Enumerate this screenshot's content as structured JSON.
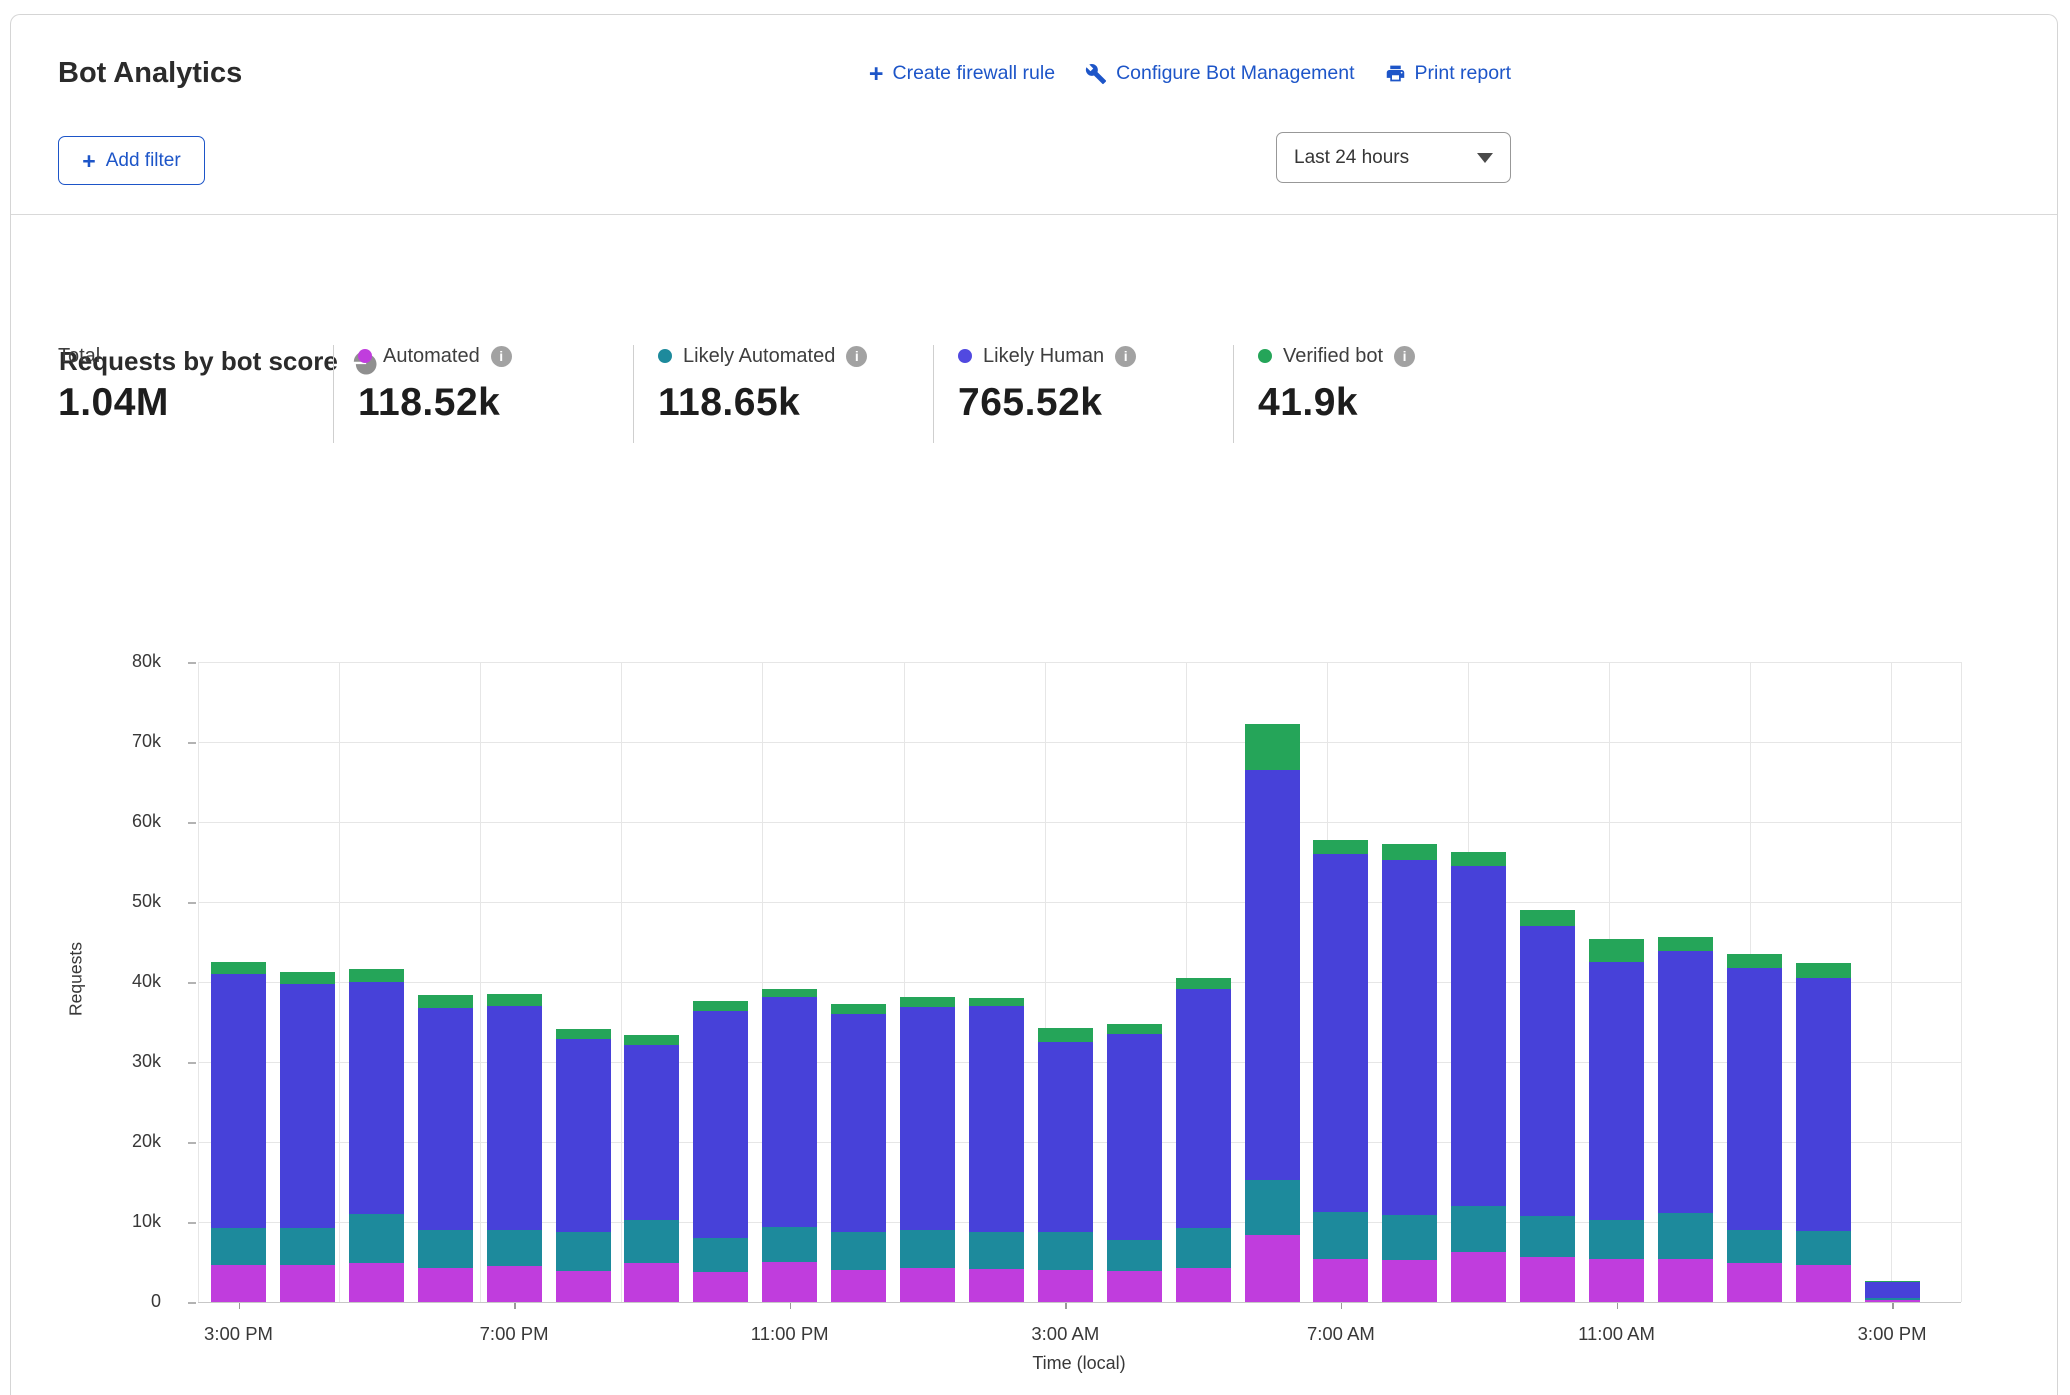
{
  "header": {
    "title": "Bot Analytics",
    "actions": [
      {
        "icon": "plus-icon",
        "label": "Create firewall rule"
      },
      {
        "icon": "wrench-icon",
        "label": "Configure Bot Management"
      },
      {
        "icon": "printer-icon",
        "label": "Print report"
      }
    ]
  },
  "filter": {
    "add_label": "Add filter"
  },
  "time_range": {
    "value": "Last 24 hours"
  },
  "section": {
    "title": "Requests by bot score",
    "icon": "pie-chart-icon"
  },
  "stats": {
    "total": {
      "label": "Total",
      "value": "1.04M"
    },
    "series": [
      {
        "label": "Automated",
        "value": "118.52k",
        "color": "#c03ddd"
      },
      {
        "label": "Likely Automated",
        "value": "118.65k",
        "color": "#1d8a9c"
      },
      {
        "label": "Likely Human",
        "value": "765.52k",
        "color": "#5149e0"
      },
      {
        "label": "Verified bot",
        "value": "41.9k",
        "color": "#25a559"
      }
    ]
  },
  "chart_data": {
    "type": "bar",
    "subtype": "stacked",
    "title": "Requests by bot score",
    "ylabel": "Requests",
    "xlabel": "Time (local)",
    "ylim": [
      0,
      80000
    ],
    "values_unit": "thousands of requests per hour",
    "grid": true,
    "y_tick_labels": [
      "0",
      "10k",
      "20k",
      "30k",
      "40k",
      "50k",
      "60k",
      "70k",
      "80k"
    ],
    "x_tick_labels": [
      "3:00 PM",
      "7:00 PM",
      "11:00 PM",
      "3:00 AM",
      "7:00 AM",
      "11:00 AM",
      "3:00 PM"
    ],
    "x_tick_bar_indices": [
      0,
      4,
      8,
      12,
      16,
      20,
      24
    ],
    "categories": [
      "3:00 PM",
      "4:00 PM",
      "5:00 PM",
      "6:00 PM",
      "7:00 PM",
      "8:00 PM",
      "9:00 PM",
      "10:00 PM",
      "11:00 PM",
      "12:00 AM",
      "1:00 AM",
      "2:00 AM",
      "3:00 AM",
      "4:00 AM",
      "5:00 AM",
      "6:00 AM",
      "7:00 AM",
      "8:00 AM",
      "9:00 AM",
      "10:00 AM",
      "11:00 AM",
      "12:00 PM",
      "1:00 PM",
      "2:00 PM",
      "3:00 PM"
    ],
    "series": [
      {
        "name": "Automated",
        "color": "#c03ddd",
        "values": [
          4.6,
          4.6,
          4.9,
          4.2,
          4.5,
          3.9,
          4.9,
          3.8,
          5.0,
          4.0,
          4.2,
          4.1,
          4.0,
          3.9,
          4.3,
          8.4,
          5.4,
          5.3,
          6.3,
          5.6,
          5.4,
          5.4,
          4.9,
          4.6,
          0.2
        ]
      },
      {
        "name": "Likely Automated",
        "color": "#1d8a9c",
        "values": [
          4.6,
          4.6,
          6.1,
          4.7,
          4.5,
          4.9,
          5.4,
          4.3,
          4.4,
          4.8,
          4.8,
          4.6,
          4.7,
          3.9,
          5.0,
          6.9,
          5.9,
          5.6,
          5.8,
          5.1,
          4.9,
          5.8,
          4.1,
          4.3,
          0.2
        ]
      },
      {
        "name": "Likely Human",
        "color": "#4741d9",
        "values": [
          31.8,
          30.5,
          29.0,
          27.7,
          28.0,
          24.1,
          21.9,
          28.4,
          28.7,
          27.2,
          27.9,
          28.3,
          23.7,
          25.7,
          29.9,
          51.3,
          44.7,
          44.4,
          42.5,
          36.2,
          32.3,
          32.8,
          32.8,
          31.6,
          2.0
        ]
      },
      {
        "name": "Verified bot",
        "color": "#25a559",
        "values": [
          1.5,
          1.5,
          1.6,
          1.6,
          1.5,
          1.3,
          1.3,
          1.2,
          1.0,
          1.3,
          1.3,
          1.0,
          1.7,
          1.3,
          1.4,
          5.7,
          1.8,
          2.0,
          1.8,
          2.0,
          2.9,
          1.7,
          1.7,
          1.9,
          0.1
        ]
      }
    ]
  }
}
